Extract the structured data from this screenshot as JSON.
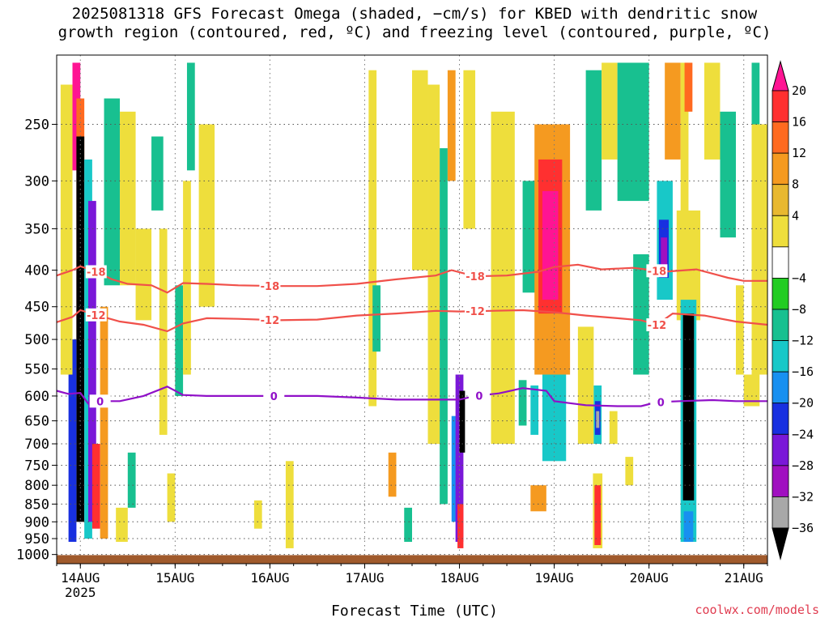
{
  "title": {
    "line1": "2025081318 GFS Forecast Omega (shaded, −cm/s) for KBED with dendritic snow",
    "line2": "growth region (contoured, red, ºC) and freezing level (contoured, purple, ºC)"
  },
  "credit": "coolwx.com/models",
  "colors": {
    "dgz_contour": "#f0504a",
    "freezing_contour": "#9010c8",
    "ground": "#a05a2c"
  },
  "chart_data": {
    "type": "heatmap",
    "xlabel": "Forecast Time (UTC)",
    "ylabel": "",
    "x_ticks": [
      {
        "label": "14AUG",
        "sub": "2025",
        "hour": 0
      },
      {
        "label": "15AUG",
        "sub": "",
        "hour": 24
      },
      {
        "label": "16AUG",
        "sub": "",
        "hour": 48
      },
      {
        "label": "17AUG",
        "sub": "",
        "hour": 72
      },
      {
        "label": "18AUG",
        "sub": "",
        "hour": 96
      },
      {
        "label": "19AUG",
        "sub": "",
        "hour": 120
      },
      {
        "label": "20AUG",
        "sub": "",
        "hour": 144
      },
      {
        "label": "21AUG",
        "sub": "",
        "hour": 168
      }
    ],
    "x_range_hours": [
      -6,
      174
    ],
    "y_ticks": [
      250,
      300,
      350,
      400,
      450,
      500,
      550,
      600,
      650,
      700,
      750,
      800,
      850,
      900,
      950,
      1000
    ],
    "y_range_hpa": [
      200,
      1030
    ],
    "y_scale": "log",
    "grid": true,
    "colorbar": {
      "labels": [
        "20",
        "16",
        "12",
        "8",
        "4",
        "−4",
        "−8",
        "−12",
        "−16",
        "−20",
        "−24",
        "−28",
        "−32",
        "−36"
      ],
      "colors": [
        "#ff1493",
        "#ff3030",
        "#ff6a20",
        "#f59a20",
        "#e8b830",
        "#eede3c",
        "#ffffff",
        "#22cc22",
        "#18c090",
        "#18c8c8",
        "#1890f0",
        "#1830e0",
        "#7a18d8",
        "#a010c0",
        "#a8a8a8",
        "#000000"
      ]
    },
    "contours": [
      {
        "level": -18,
        "color": "red",
        "labels": [
          "-18",
          "-18",
          "-18",
          "-18"
        ],
        "points": [
          [
            -6,
            407
          ],
          [
            -2,
            400
          ],
          [
            0,
            395
          ],
          [
            4,
            402
          ],
          [
            8,
            412
          ],
          [
            12,
            418
          ],
          [
            18,
            420
          ],
          [
            22,
            430
          ],
          [
            26,
            417
          ],
          [
            32,
            418
          ],
          [
            40,
            420
          ],
          [
            50,
            421
          ],
          [
            60,
            421
          ],
          [
            70,
            418
          ],
          [
            80,
            412
          ],
          [
            90,
            407
          ],
          [
            94,
            400
          ],
          [
            100,
            408
          ],
          [
            108,
            407
          ],
          [
            116,
            402
          ],
          [
            120,
            396
          ],
          [
            126,
            393
          ],
          [
            132,
            399
          ],
          [
            140,
            397
          ],
          [
            148,
            402
          ],
          [
            156,
            399
          ],
          [
            164,
            410
          ],
          [
            168,
            414
          ],
          [
            174,
            414
          ]
        ]
      },
      {
        "level": -12,
        "color": "red",
        "labels": [
          "-12",
          "-12",
          "-12",
          "-12"
        ],
        "points": [
          [
            -6,
            473
          ],
          [
            -2,
            465
          ],
          [
            0,
            455
          ],
          [
            4,
            462
          ],
          [
            10,
            472
          ],
          [
            16,
            477
          ],
          [
            22,
            487
          ],
          [
            26,
            475
          ],
          [
            32,
            467
          ],
          [
            40,
            468
          ],
          [
            50,
            470
          ],
          [
            60,
            469
          ],
          [
            70,
            463
          ],
          [
            80,
            460
          ],
          [
            90,
            456
          ],
          [
            96,
            457
          ],
          [
            104,
            456
          ],
          [
            112,
            455
          ],
          [
            120,
            458
          ],
          [
            128,
            463
          ],
          [
            136,
            467
          ],
          [
            142,
            470
          ],
          [
            146,
            477
          ],
          [
            150,
            460
          ],
          [
            158,
            463
          ],
          [
            166,
            472
          ],
          [
            174,
            477
          ]
        ]
      },
      {
        "level": 0,
        "color": "purple",
        "labels": [
          "0",
          "0",
          "0",
          "0"
        ],
        "points": [
          [
            -6,
            590
          ],
          [
            -3,
            596
          ],
          [
            0,
            594
          ],
          [
            2,
            615
          ],
          [
            5,
            610
          ],
          [
            10,
            610
          ],
          [
            16,
            600
          ],
          [
            22,
            582
          ],
          [
            26,
            598
          ],
          [
            32,
            600
          ],
          [
            40,
            600
          ],
          [
            50,
            600
          ],
          [
            60,
            600
          ],
          [
            70,
            603
          ],
          [
            80,
            607
          ],
          [
            90,
            607
          ],
          [
            96,
            607
          ],
          [
            100,
            600
          ],
          [
            106,
            595
          ],
          [
            112,
            585
          ],
          [
            118,
            590
          ],
          [
            120,
            610
          ],
          [
            128,
            618
          ],
          [
            136,
            620
          ],
          [
            142,
            620
          ],
          [
            146,
            612
          ],
          [
            152,
            610
          ],
          [
            160,
            608
          ],
          [
            166,
            610
          ],
          [
            174,
            610
          ]
        ]
      }
    ],
    "omega_cells": [
      {
        "x0": -2,
        "x1": 0,
        "p0": 205,
        "p1": 290,
        "value": 20
      },
      {
        "x0": -1,
        "x1": 1,
        "p0": 230,
        "p1": 500,
        "value": 12
      },
      {
        "x0": -1,
        "x1": 1,
        "p0": 260,
        "p1": 900,
        "value": -36
      },
      {
        "x0": 1,
        "x1": 3,
        "p0": 280,
        "p1": 950,
        "value": -12
      },
      {
        "x0": 2,
        "x1": 4,
        "p0": 320,
        "p1": 900,
        "value": -24
      },
      {
        "x0": -3,
        "x1": -1,
        "p0": 500,
        "p1": 960,
        "value": -20
      },
      {
        "x0": 3,
        "x1": 5,
        "p0": 700,
        "p1": 920,
        "value": 16
      },
      {
        "x0": 5,
        "x1": 7,
        "p0": 450,
        "p1": 950,
        "value": 8
      },
      {
        "x0": -5,
        "x1": -2,
        "p0": 220,
        "p1": 560,
        "value": 4
      },
      {
        "x0": 6,
        "x1": 10,
        "p0": 230,
        "p1": 420,
        "value": -8
      },
      {
        "x0": 10,
        "x1": 14,
        "p0": 240,
        "p1": 420,
        "value": 4
      },
      {
        "x0": 14,
        "x1": 18,
        "p0": 350,
        "p1": 470,
        "value": 4
      },
      {
        "x0": 18,
        "x1": 21,
        "p0": 260,
        "p1": 330,
        "value": -8
      },
      {
        "x0": 20,
        "x1": 22,
        "p0": 350,
        "p1": 680,
        "value": 4
      },
      {
        "x0": 24,
        "x1": 26,
        "p0": 420,
        "p1": 600,
        "value": -8
      },
      {
        "x0": 26,
        "x1": 28,
        "p0": 300,
        "p1": 560,
        "value": 4
      },
      {
        "x0": 27,
        "x1": 29,
        "p0": 205,
        "p1": 290,
        "value": -8
      },
      {
        "x0": 30,
        "x1": 34,
        "p0": 250,
        "p1": 450,
        "value": 4
      },
      {
        "x0": 9,
        "x1": 12,
        "p0": 860,
        "p1": 960,
        "value": 4
      },
      {
        "x0": 12,
        "x1": 14,
        "p0": 720,
        "p1": 860,
        "value": -8
      },
      {
        "x0": 22,
        "x1": 24,
        "p0": 770,
        "p1": 900,
        "value": 4
      },
      {
        "x0": 44,
        "x1": 46,
        "p0": 840,
        "p1": 920,
        "value": 4
      },
      {
        "x0": 52,
        "x1": 54,
        "p0": 740,
        "p1": 980,
        "value": 4
      },
      {
        "x0": 73,
        "x1": 75,
        "p0": 210,
        "p1": 620,
        "value": 4
      },
      {
        "x0": 74,
        "x1": 76,
        "p0": 420,
        "p1": 520,
        "value": -8
      },
      {
        "x0": 78,
        "x1": 80,
        "p0": 720,
        "p1": 830,
        "value": 8
      },
      {
        "x0": 82,
        "x1": 84,
        "p0": 860,
        "p1": 960,
        "value": -8
      },
      {
        "x0": 84,
        "x1": 88,
        "p0": 210,
        "p1": 400,
        "value": 4
      },
      {
        "x0": 88,
        "x1": 91,
        "p0": 220,
        "p1": 700,
        "value": 4
      },
      {
        "x0": 91,
        "x1": 93,
        "p0": 270,
        "p1": 850,
        "value": -8
      },
      {
        "x0": 93,
        "x1": 95,
        "p0": 210,
        "p1": 300,
        "value": 8
      },
      {
        "x0": 94,
        "x1": 96,
        "p0": 640,
        "p1": 900,
        "value": -16
      },
      {
        "x0": 95,
        "x1": 97,
        "p0": 560,
        "p1": 960,
        "value": -24
      },
      {
        "x0": 96,
        "x1": 97.4,
        "p0": 590,
        "p1": 720,
        "value": -36
      },
      {
        "x0": 95.5,
        "x1": 97,
        "p0": 850,
        "p1": 980,
        "value": 16
      },
      {
        "x0": 97,
        "x1": 100,
        "p0": 210,
        "p1": 350,
        "value": 4
      },
      {
        "x0": 104,
        "x1": 110,
        "p0": 240,
        "p1": 700,
        "value": 4
      },
      {
        "x0": 112,
        "x1": 116,
        "p0": 300,
        "p1": 430,
        "value": -8
      },
      {
        "x0": 111,
        "x1": 113,
        "p0": 570,
        "p1": 660,
        "value": -8
      },
      {
        "x0": 115,
        "x1": 124,
        "p0": 250,
        "p1": 560,
        "value": 8
      },
      {
        "x0": 116,
        "x1": 122,
        "p0": 280,
        "p1": 460,
        "value": 16
      },
      {
        "x0": 117,
        "x1": 121,
        "p0": 310,
        "p1": 440,
        "value": 20
      },
      {
        "x0": 114,
        "x1": 116,
        "p0": 580,
        "p1": 680,
        "value": -12
      },
      {
        "x0": 117,
        "x1": 123,
        "p0": 560,
        "p1": 740,
        "value": -12
      },
      {
        "x0": 114,
        "x1": 118,
        "p0": 800,
        "p1": 870,
        "value": 8
      },
      {
        "x0": 126,
        "x1": 130,
        "p0": 480,
        "p1": 700,
        "value": 4
      },
      {
        "x0": 128,
        "x1": 132,
        "p0": 210,
        "p1": 330,
        "value": -8
      },
      {
        "x0": 132,
        "x1": 136,
        "p0": 205,
        "p1": 280,
        "value": 4
      },
      {
        "x0": 136,
        "x1": 144,
        "p0": 205,
        "p1": 320,
        "value": -8
      },
      {
        "x0": 140,
        "x1": 144,
        "p0": 380,
        "p1": 560,
        "value": -8
      },
      {
        "x0": 130,
        "x1": 132,
        "p0": 580,
        "p1": 700,
        "value": -12
      },
      {
        "x0": 130.3,
        "x1": 131.7,
        "p0": 610,
        "p1": 680,
        "value": -20
      },
      {
        "x0": 130.6,
        "x1": 131.4,
        "p0": 630,
        "p1": 665,
        "value": -32
      },
      {
        "x0": 129.8,
        "x1": 132.2,
        "p0": 770,
        "p1": 980,
        "value": 4
      },
      {
        "x0": 130.2,
        "x1": 131.8,
        "p0": 800,
        "p1": 970,
        "value": 16
      },
      {
        "x0": 134,
        "x1": 136,
        "p0": 630,
        "p1": 700,
        "value": 4
      },
      {
        "x0": 138,
        "x1": 140,
        "p0": 730,
        "p1": 800,
        "value": 4
      },
      {
        "x0": 146,
        "x1": 150,
        "p0": 300,
        "p1": 440,
        "value": -12
      },
      {
        "x0": 146.5,
        "x1": 149,
        "p0": 340,
        "p1": 410,
        "value": -20
      },
      {
        "x0": 147,
        "x1": 148.6,
        "p0": 360,
        "p1": 400,
        "value": -28
      },
      {
        "x0": 148,
        "x1": 152,
        "p0": 205,
        "p1": 280,
        "value": 8
      },
      {
        "x0": 152,
        "x1": 154,
        "p0": 205,
        "p1": 420,
        "value": 4
      },
      {
        "x0": 153,
        "x1": 155,
        "p0": 205,
        "p1": 240,
        "value": 12
      },
      {
        "x0": 151,
        "x1": 157,
        "p0": 330,
        "p1": 470,
        "value": 4
      },
      {
        "x0": 152,
        "x1": 156,
        "p0": 440,
        "p1": 960,
        "value": -12
      },
      {
        "x0": 152.6,
        "x1": 155.4,
        "p0": 460,
        "p1": 840,
        "value": -36
      },
      {
        "x0": 152.8,
        "x1": 155.2,
        "p0": 870,
        "p1": 960,
        "value": -16
      },
      {
        "x0": 158,
        "x1": 162,
        "p0": 205,
        "p1": 280,
        "value": 4
      },
      {
        "x0": 162,
        "x1": 166,
        "p0": 240,
        "p1": 360,
        "value": -8
      },
      {
        "x0": 166,
        "x1": 168,
        "p0": 420,
        "p1": 560,
        "value": 4
      },
      {
        "x0": 170,
        "x1": 174,
        "p0": 250,
        "p1": 560,
        "value": 4
      },
      {
        "x0": 170,
        "x1": 172,
        "p0": 205,
        "p1": 250,
        "value": -8
      },
      {
        "x0": 168,
        "x1": 172,
        "p0": 560,
        "p1": 620,
        "value": 4
      }
    ]
  }
}
